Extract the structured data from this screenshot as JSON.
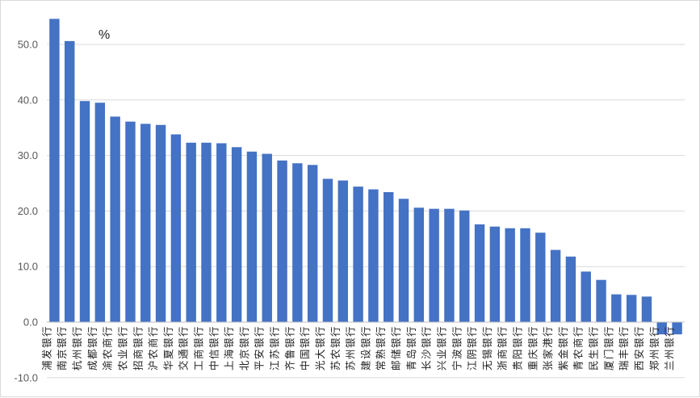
{
  "chart_data": {
    "type": "bar",
    "title": "",
    "unit": "%",
    "xlabel": "",
    "ylabel": "",
    "ylim": [
      -10,
      55
    ],
    "yticks": [
      -10,
      0,
      10,
      20,
      30,
      40,
      50
    ],
    "ytick_labels": [
      "-10.0",
      "0.0",
      "10.0",
      "20.0",
      "30.0",
      "40.0",
      "50.0"
    ],
    "grid": true,
    "legend": "none",
    "bar_color": "#4472c4",
    "categories": [
      "浦发银行",
      "南京银行",
      "杭州银行",
      "成都银行",
      "渝农商行",
      "农业银行",
      "招商银行",
      "沪农商行",
      "华夏银行",
      "交通银行",
      "工商银行",
      "中信银行",
      "上海银行",
      "北京银行",
      "平安银行",
      "江苏银行",
      "齐鲁银行",
      "中国银行",
      "光大银行",
      "苏农银行",
      "苏州银行",
      "建设银行",
      "常熟银行",
      "邮储银行",
      "青岛银行",
      "长沙银行",
      "兴业银行",
      "宁波银行",
      "江阴银行",
      "无锡银行",
      "浙商银行",
      "贵阳银行",
      "重庆银行",
      "张家港行",
      "紫金银行",
      "青农商行",
      "民生银行",
      "厦门银行",
      "瑞丰银行",
      "西安银行",
      "郑州银行",
      "兰州银行"
    ],
    "values": [
      54.6,
      50.6,
      39.8,
      39.5,
      37.0,
      36.1,
      35.7,
      35.5,
      33.8,
      32.3,
      32.3,
      32.2,
      31.5,
      30.7,
      30.3,
      29.1,
      28.6,
      28.3,
      25.8,
      25.5,
      24.4,
      23.9,
      23.4,
      22.2,
      20.6,
      20.4,
      20.4,
      20.1,
      17.6,
      17.2,
      16.9,
      16.9,
      16.1,
      13.0,
      11.8,
      9.1,
      7.6,
      5.0,
      4.9,
      4.6,
      -2.2,
      -2.2
    ]
  }
}
